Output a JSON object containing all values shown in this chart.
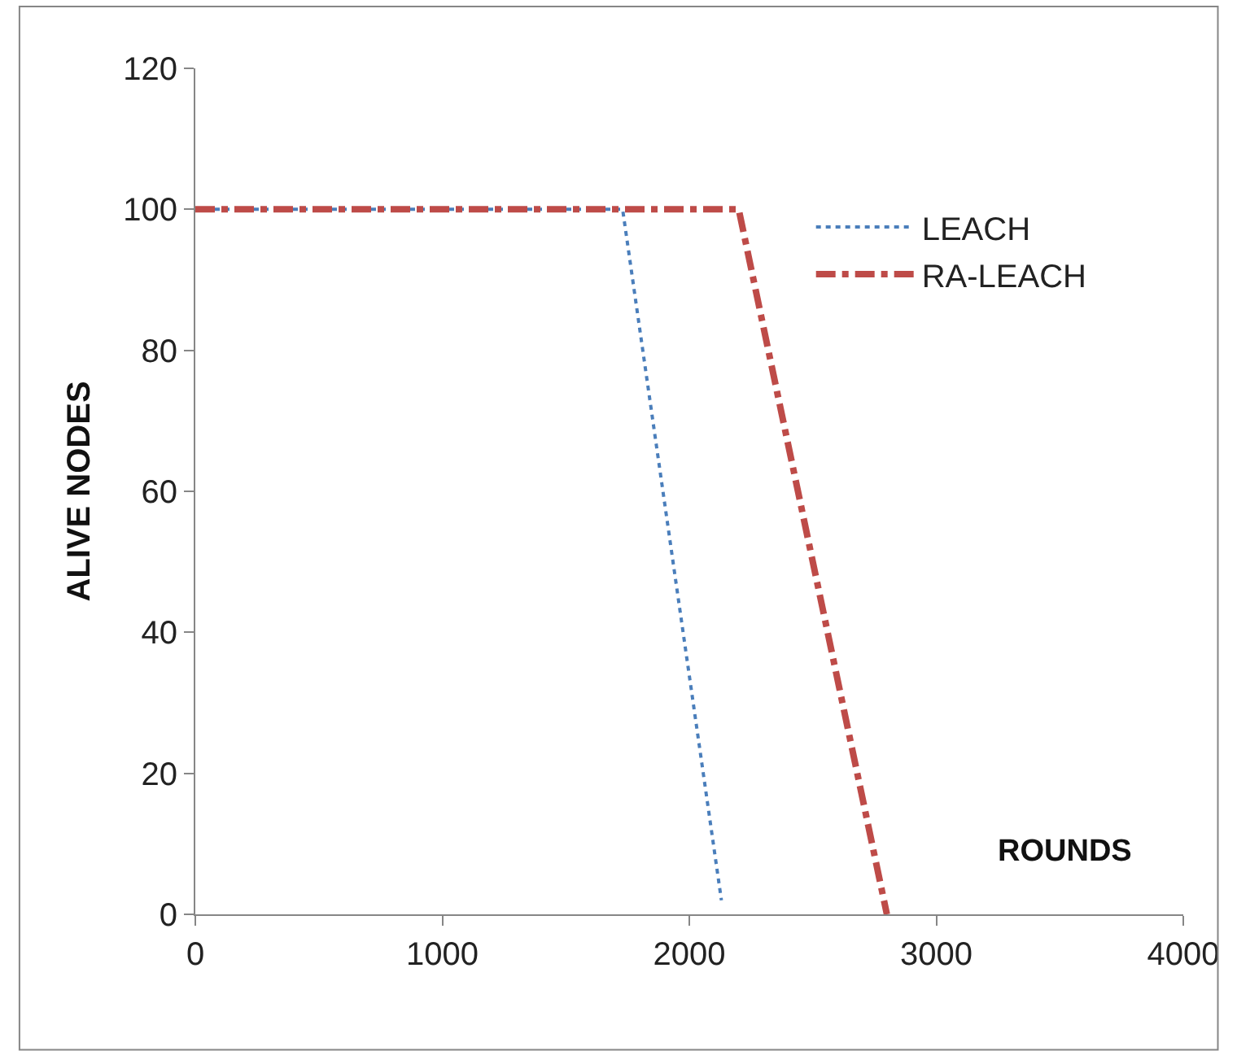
{
  "chart_data": {
    "type": "line",
    "xlabel": "ROUNDS",
    "ylabel": "ALIVE NODES",
    "xlim": [
      0,
      4000
    ],
    "xticks": [
      0,
      1000,
      2000,
      3000,
      4000
    ],
    "ylim": [
      0,
      120
    ],
    "yticks": [
      0,
      20,
      40,
      60,
      80,
      100,
      120
    ],
    "legend": "top right",
    "marker": "none",
    "series": [
      {
        "name": "LEACH",
        "color": "#4a7ebb",
        "line_style": "dotted",
        "x": [
          0,
          1730,
          2130
        ],
        "values": [
          100,
          100,
          2
        ]
      },
      {
        "name": "RA-LEACH",
        "color": "#be4b48",
        "line_style": "dashdot",
        "x": [
          0,
          2200,
          2800
        ],
        "values": [
          100,
          100,
          0
        ]
      }
    ]
  }
}
